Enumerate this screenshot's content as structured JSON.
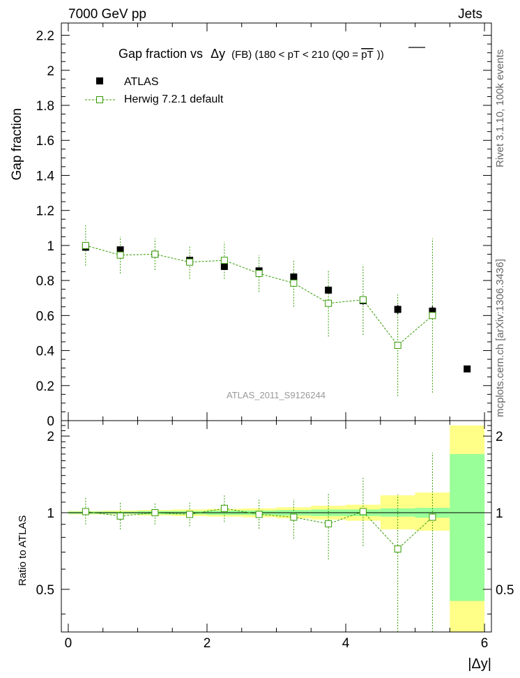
{
  "header": {
    "left": "7000 GeV pp",
    "right": "Jets"
  },
  "side_labels": {
    "rivet": "Rivet 3.1.10,  100k events",
    "mcplots": "mcplots.cern.ch [arXiv:1306.3436]"
  },
  "chart_data": [
    {
      "panel": "main",
      "type": "scatter",
      "title_prefix": "Gap fraction vs",
      "title_var": "Δy",
      "title_rest": "(FB) (180 < pT < 210 (Q0 = ",
      "title_pt": "pT",
      "title_end": "))",
      "ylabel": "Gap fraction",
      "xlim": [
        -0.1,
        6.1
      ],
      "ylim": [
        0,
        2.27
      ],
      "yticks": [
        "0",
        "0.2",
        "0.4",
        "0.6",
        "0.8",
        "1",
        "1.2",
        "1.4",
        "1.6",
        "1.8",
        "2",
        "2.2"
      ],
      "watermark": "ATLAS_2011_S9126244",
      "legend": [
        "ATLAS",
        "Herwig 7.2.1 default"
      ],
      "series": [
        {
          "name": "ATLAS",
          "color": "#000000",
          "x": [
            0.25,
            0.75,
            1.25,
            1.75,
            2.25,
            2.75,
            3.25,
            3.75,
            4.25,
            4.75,
            5.25,
            5.75
          ],
          "values": [
            0.99,
            0.975,
            0.95,
            0.915,
            0.88,
            0.855,
            0.82,
            0.745,
            0.685,
            0.635,
            0.625,
            0.295
          ],
          "err": [
            0.005,
            0.007,
            0.008,
            0.012,
            0.012,
            0.015,
            0.017,
            0.02,
            0.023,
            0.025,
            0.028,
            0.01
          ]
        },
        {
          "name": "Herwig 7.2.1 default",
          "color": "#339900",
          "x": [
            0.25,
            0.75,
            1.25,
            1.75,
            2.25,
            2.75,
            3.25,
            3.75,
            4.25,
            4.75,
            5.25
          ],
          "values": [
            1.0,
            0.945,
            0.95,
            0.905,
            0.915,
            0.84,
            0.785,
            0.67,
            0.69,
            0.43,
            0.6
          ],
          "err": [
            0.115,
            0.105,
            0.09,
            0.095,
            0.105,
            0.105,
            0.135,
            0.19,
            0.2,
            0.29,
            0.44
          ]
        }
      ]
    },
    {
      "panel": "ratio",
      "type": "scatter",
      "ylabel": "Ratio to ATLAS",
      "xlabel": "|Δy|",
      "xlim": [
        -0.1,
        6.1
      ],
      "ylim": [
        0.34,
        2.3
      ],
      "yticks": [
        "0.5",
        "1",
        "2"
      ],
      "xticks": [
        "0",
        "2",
        "4",
        "6"
      ],
      "bands": {
        "edges": [
          0.0,
          0.5,
          1.0,
          1.5,
          2.0,
          2.5,
          3.0,
          3.5,
          4.0,
          4.5,
          5.0,
          5.5,
          6.0
        ],
        "green_lo": [
          0.99,
          0.99,
          0.985,
          0.985,
          0.98,
          0.98,
          0.975,
          0.97,
          0.97,
          0.965,
          0.955,
          0.45
        ],
        "green_hi": [
          1.01,
          1.01,
          1.015,
          1.015,
          1.02,
          1.02,
          1.025,
          1.03,
          1.03,
          1.04,
          1.045,
          1.7
        ],
        "yellow_lo": [
          0.985,
          0.985,
          0.975,
          0.97,
          0.965,
          0.96,
          0.95,
          0.94,
          0.93,
          0.86,
          0.85,
          0.3
        ],
        "yellow_hi": [
          1.015,
          1.02,
          1.025,
          1.03,
          1.035,
          1.04,
          1.05,
          1.065,
          1.075,
          1.17,
          1.2,
          2.2
        ],
        "green_color": "#99ff99",
        "yellow_color": "#ffff88"
      },
      "series": [
        {
          "name": "Herwig 7.2.1 default / ATLAS",
          "color": "#339900",
          "x": [
            0.25,
            0.75,
            1.25,
            1.75,
            2.25,
            2.75,
            3.25,
            3.75,
            4.25,
            4.75,
            5.25
          ],
          "values": [
            1.01,
            0.97,
            1.0,
            0.985,
            1.04,
            0.985,
            0.96,
            0.905,
            1.01,
            0.72,
            0.96
          ],
          "err_lo": [
            0.11,
            0.11,
            0.1,
            0.1,
            0.12,
            0.12,
            0.17,
            0.25,
            0.27,
            0.47,
            0.7
          ],
          "err_hi": [
            0.14,
            0.13,
            0.1,
            0.11,
            0.14,
            0.14,
            0.17,
            0.29,
            0.36,
            0.46,
            0.76
          ]
        }
      ]
    }
  ]
}
